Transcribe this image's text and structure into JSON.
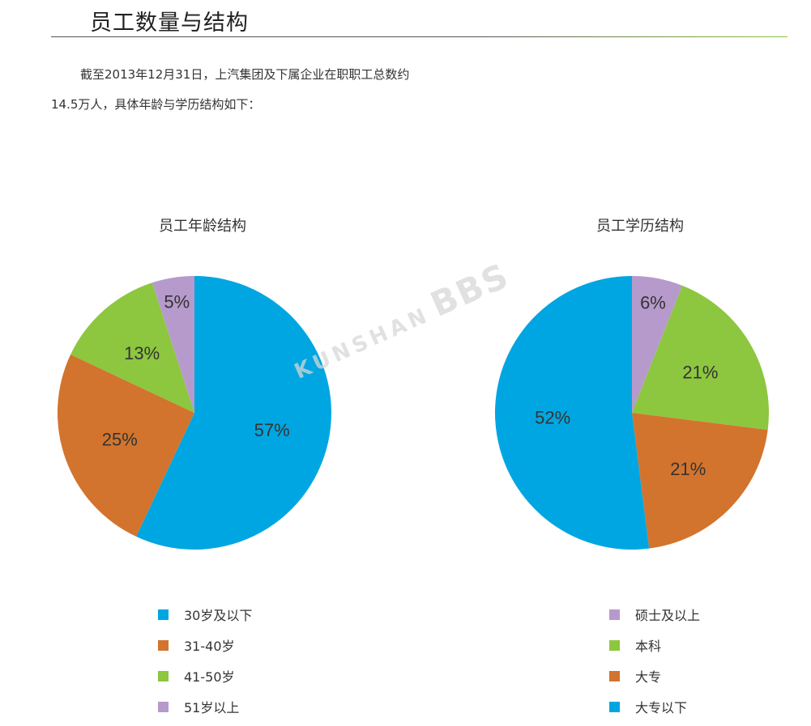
{
  "header": {
    "title": "员工数量与结构"
  },
  "intro": {
    "text": "截至2013年12月31日，上汽集团及下属企业在职职工总数约14.5万人，具体年龄与学历结构如下："
  },
  "watermark": {
    "text": "KUNSHAN",
    "big": "BBS"
  },
  "colors": {
    "blue": "#00A6E1",
    "orange": "#D2742E",
    "green": "#8DC63F",
    "purple": "#B69ACB"
  },
  "chart_data": [
    {
      "type": "pie",
      "title": "员工年龄结构",
      "slices": [
        {
          "label": "30岁及以下",
          "value": 57,
          "display": "57%",
          "color": "#00A6E1"
        },
        {
          "label": "31-40岁",
          "value": 25,
          "display": "25%",
          "color": "#D2742E"
        },
        {
          "label": "41-50岁",
          "value": 13,
          "display": "13%",
          "color": "#8DC63F"
        },
        {
          "label": "51岁以上",
          "value": 5,
          "display": "5%",
          "color": "#B69ACB"
        }
      ],
      "direction": "clockwise",
      "legend_position": "bottom"
    },
    {
      "type": "pie",
      "title": "员工学历结构",
      "slices": [
        {
          "label": "硕士及以上",
          "value": 6,
          "display": "6%",
          "color": "#B69ACB"
        },
        {
          "label": "本科",
          "value": 21,
          "display": "21%",
          "color": "#8DC63F"
        },
        {
          "label": "大专",
          "value": 21,
          "display": "21%",
          "color": "#D2742E"
        },
        {
          "label": "大专以下",
          "value": 52,
          "display": "52%",
          "color": "#00A6E1"
        }
      ],
      "direction": "clockwise",
      "legend_position": "bottom"
    }
  ]
}
